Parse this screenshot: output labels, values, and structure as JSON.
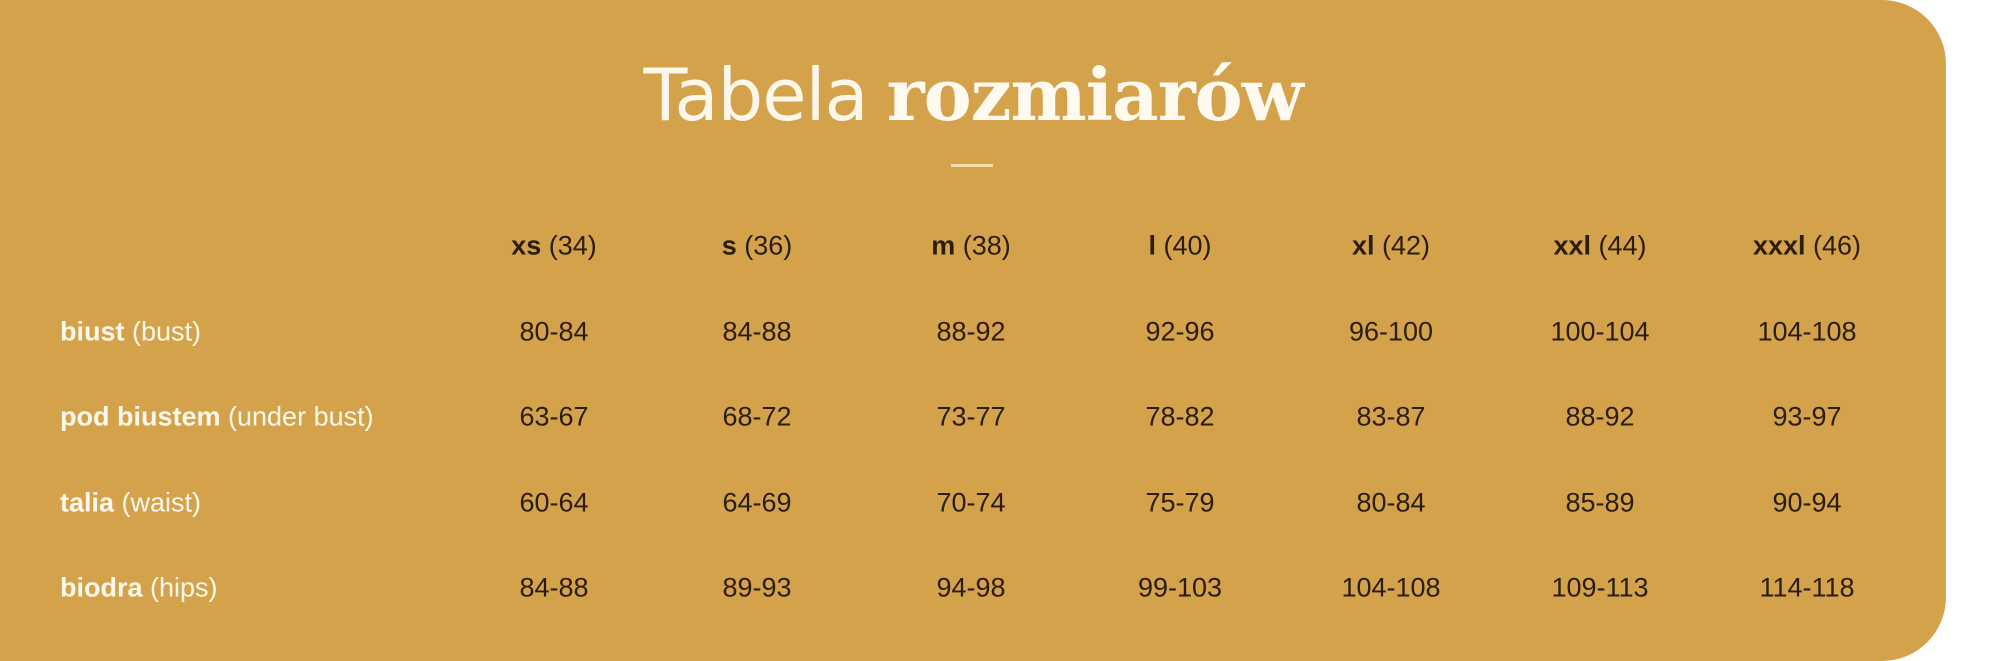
{
  "title": {
    "light": "Tabela",
    "bold": "rozmiarów"
  },
  "colors": {
    "card_background": "#D4A24A",
    "value_text": "#2a1d0e",
    "label_text": "#fff8ec"
  },
  "columns": [
    {
      "size": "xs",
      "eu": "(34)"
    },
    {
      "size": "s",
      "eu": "(36)"
    },
    {
      "size": "m",
      "eu": "(38)"
    },
    {
      "size": "l",
      "eu": "(40)"
    },
    {
      "size": "xl",
      "eu": "(42)"
    },
    {
      "size": "xxl",
      "eu": "(44)"
    },
    {
      "size": "xxxl",
      "eu": "(46)"
    }
  ],
  "rows": [
    {
      "label": "biust",
      "translation": "(bust)",
      "values": [
        "80-84",
        "84-88",
        "88-92",
        "92-96",
        "96-100",
        "100-104",
        "104-108"
      ]
    },
    {
      "label": "pod biustem",
      "translation": "(under bust)",
      "values": [
        "63-67",
        "68-72",
        "73-77",
        "78-82",
        "83-87",
        "88-92",
        "93-97"
      ]
    },
    {
      "label": "talia",
      "translation": "(waist)",
      "values": [
        "60-64",
        "64-69",
        "70-74",
        "75-79",
        "80-84",
        "85-89",
        "90-94"
      ]
    },
    {
      "label": "biodra",
      "translation": "(hips)",
      "values": [
        "84-88",
        "89-93",
        "94-98",
        "99-103",
        "104-108",
        "109-113",
        "114-118"
      ]
    }
  ]
}
